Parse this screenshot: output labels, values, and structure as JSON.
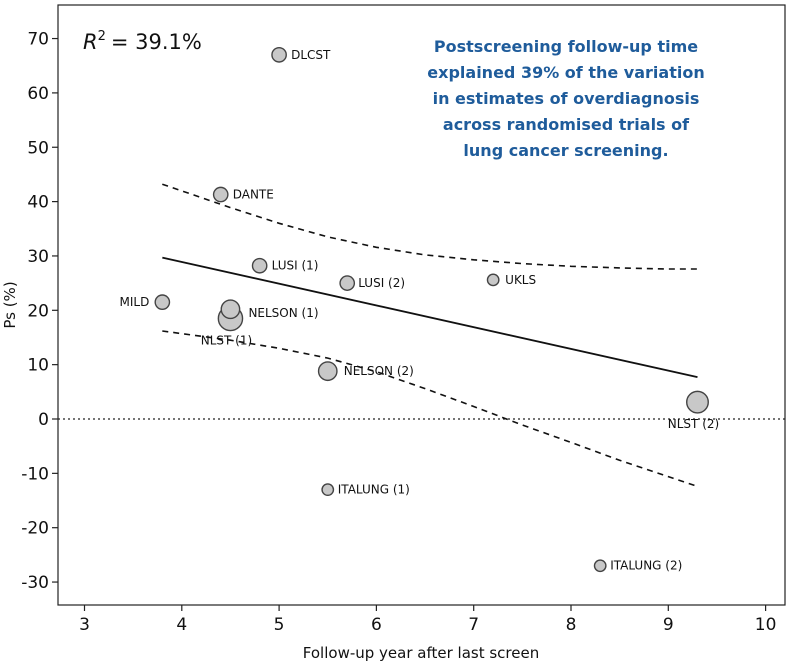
{
  "chart_data": {
    "type": "scatter",
    "title": "",
    "xlabel": "Follow-up year after last screen",
    "ylabel": "Ps (%)",
    "xlim": [
      2.7,
      10.3
    ],
    "ylim": [
      -34,
      75
    ],
    "xticks": [
      3,
      4,
      5,
      6,
      7,
      8,
      9,
      10
    ],
    "yticks": [
      -30,
      -20,
      -10,
      0,
      10,
      20,
      30,
      40,
      50,
      60,
      70
    ],
    "grid": false,
    "r2_prefix": "R",
    "r2_exponent": "2",
    "r2_value": "= 39.1%",
    "annotation_lines": [
      "Postscreening follow-up time",
      "explained 39% of the variation",
      "in estimates of overdiagnosis",
      "across randomised trials of",
      "lung cancer screening."
    ],
    "annotation_color": "#1f5c9b",
    "point_color": "#c8c8c8",
    "points": [
      {
        "label": "DLCST",
        "x": 5.0,
        "y": 67.0,
        "weight": 2
      },
      {
        "label": "DANTE",
        "x": 4.4,
        "y": 41.3,
        "weight": 2
      },
      {
        "label": "LUSI (1)",
        "x": 4.8,
        "y": 28.2,
        "weight": 2
      },
      {
        "label": "LUSI (2)",
        "x": 5.7,
        "y": 25.0,
        "weight": 2
      },
      {
        "label": "UKLS",
        "x": 7.2,
        "y": 25.6,
        "weight": 1
      },
      {
        "label": "MILD",
        "x": 3.8,
        "y": 21.5,
        "weight": 2
      },
      {
        "label": "NELSON (1)",
        "x": 4.5,
        "y": 20.2,
        "weight": 4
      },
      {
        "label": "NLST (1)",
        "x": 4.5,
        "y": 18.5,
        "weight": 8
      },
      {
        "label": "NELSON (2)",
        "x": 5.5,
        "y": 8.8,
        "weight": 4
      },
      {
        "label": "NLST (2)",
        "x": 9.3,
        "y": 3.1,
        "weight": 6
      },
      {
        "label": "ITALUNG (1)",
        "x": 5.5,
        "y": -13.0,
        "weight": 1
      },
      {
        "label": "ITALUNG (2)",
        "x": 8.3,
        "y": -27.0,
        "weight": 1
      }
    ],
    "fit_line": {
      "x": [
        3.8,
        9.3
      ],
      "y": [
        29.7,
        7.7
      ]
    },
    "upper_band": {
      "x": [
        3.8,
        4.5,
        5.0,
        5.5,
        6.0,
        6.5,
        7.0,
        7.5,
        8.0,
        8.5,
        9.0,
        9.3
      ],
      "y": [
        43.2,
        38.9,
        36.0,
        33.5,
        31.6,
        30.2,
        29.3,
        28.6,
        28.1,
        27.8,
        27.6,
        27.6
      ]
    },
    "lower_band": {
      "x": [
        3.8,
        4.5,
        5.0,
        5.5,
        6.0,
        6.5,
        7.0,
        7.5,
        8.0,
        8.5,
        9.0,
        9.3
      ],
      "y": [
        16.2,
        14.5,
        13.0,
        11.2,
        8.7,
        5.6,
        2.3,
        -1.1,
        -4.3,
        -7.6,
        -10.6,
        -12.4
      ]
    },
    "zero_line": {
      "y": 0,
      "style": "dotted"
    }
  }
}
